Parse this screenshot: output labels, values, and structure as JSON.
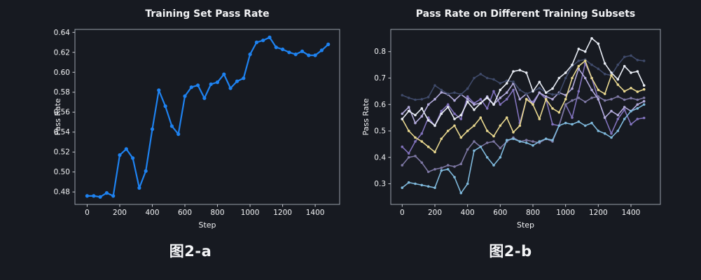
{
  "page": {
    "background": "#171a21"
  },
  "figures": [
    {
      "caption": "图2-a"
    },
    {
      "caption": "图2-b"
    }
  ],
  "chart_data": [
    {
      "type": "line",
      "title": "Training Set Pass Rate",
      "xlabel": "Step",
      "ylabel": "Pass Rate",
      "grid": false,
      "legend": "none",
      "xlim": [
        -75,
        1550
      ],
      "ylim": [
        0.4675,
        0.643
      ],
      "xticks": [
        0,
        200,
        400,
        600,
        800,
        1000,
        1200,
        1400
      ],
      "xtick_labels": [
        "0",
        "200",
        "400",
        "600",
        "800",
        "1000",
        "1200",
        "1400"
      ],
      "yticks": [
        0.48,
        0.5,
        0.52,
        0.54,
        0.56,
        0.58,
        0.6,
        0.62,
        0.64
      ],
      "ytick_labels": [
        "0.48",
        "0.50",
        "0.52",
        "0.54",
        "0.56",
        "0.58",
        "0.60",
        "0.62",
        "0.64"
      ],
      "x": [
        0,
        40,
        80,
        120,
        160,
        200,
        240,
        280,
        320,
        360,
        400,
        440,
        480,
        520,
        560,
        600,
        640,
        680,
        720,
        760,
        800,
        840,
        880,
        920,
        960,
        1000,
        1040,
        1080,
        1120,
        1160,
        1200,
        1240,
        1280,
        1320,
        1360,
        1400,
        1440,
        1480
      ],
      "series": [
        {
          "name": "training-pass-rate",
          "color": "#1e82f0",
          "values": [
            0.476,
            0.476,
            0.475,
            0.479,
            0.476,
            0.517,
            0.523,
            0.514,
            0.484,
            0.501,
            0.543,
            0.582,
            0.566,
            0.546,
            0.538,
            0.576,
            0.585,
            0.587,
            0.574,
            0.588,
            0.59,
            0.598,
            0.584,
            0.591,
            0.594,
            0.618,
            0.63,
            0.632,
            0.635,
            0.625,
            0.623,
            0.62,
            0.618,
            0.621,
            0.617,
            0.617,
            0.622,
            0.628
          ]
        }
      ]
    },
    {
      "type": "line",
      "title": "Pass Rate on Different Training Subsets",
      "xlabel": "Step",
      "ylabel": "Pass Rate",
      "grid": false,
      "legend": "none",
      "xlim": [
        -70,
        1580
      ],
      "ylim": [
        0.222,
        0.884
      ],
      "xticks": [
        0,
        200,
        400,
        600,
        800,
        1000,
        1200,
        1400
      ],
      "xtick_labels": [
        "0",
        "200",
        "400",
        "600",
        "800",
        "1000",
        "1200",
        "1400"
      ],
      "yticks": [
        0.3,
        0.4,
        0.5,
        0.6,
        0.7,
        0.8
      ],
      "ytick_labels": [
        "0.3",
        "0.4",
        "0.5",
        "0.6",
        "0.7",
        "0.8"
      ],
      "x": [
        0,
        40,
        80,
        120,
        160,
        200,
        240,
        280,
        320,
        360,
        400,
        440,
        480,
        520,
        560,
        600,
        640,
        680,
        720,
        760,
        800,
        840,
        880,
        920,
        960,
        1000,
        1040,
        1080,
        1120,
        1160,
        1200,
        1240,
        1280,
        1320,
        1360,
        1400,
        1440,
        1480
      ],
      "series": [
        {
          "name": "subset-purple",
          "color": "#8172bc",
          "values": [
            0.44,
            0.415,
            0.46,
            0.49,
            0.55,
            0.52,
            0.575,
            0.6,
            0.565,
            0.545,
            0.63,
            0.605,
            0.62,
            0.585,
            0.65,
            0.6,
            0.62,
            0.655,
            0.53,
            0.62,
            0.61,
            0.645,
            0.62,
            0.525,
            0.52,
            0.6,
            0.55,
            0.65,
            0.755,
            0.7,
            0.62,
            0.55,
            0.49,
            0.545,
            0.58,
            0.525,
            0.545,
            0.549
          ]
        },
        {
          "name": "subset-gray-purple",
          "color": "#7d77a3",
          "values": [
            0.37,
            0.4,
            0.405,
            0.38,
            0.345,
            0.355,
            0.36,
            0.37,
            0.365,
            0.375,
            0.43,
            0.46,
            0.44,
            0.455,
            0.46,
            0.435,
            0.46,
            0.475,
            0.46,
            0.465,
            0.46,
            0.455,
            0.47,
            0.46,
            0.52,
            0.6,
            0.615,
            0.625,
            0.61,
            0.625,
            0.63,
            0.615,
            0.62,
            0.63,
            0.618,
            0.624,
            0.618,
            0.625
          ]
        },
        {
          "name": "subset-lavender",
          "color": "#b3abdc",
          "values": [
            0.565,
            0.59,
            0.53,
            0.555,
            0.6,
            0.62,
            0.646,
            0.638,
            0.615,
            0.638,
            0.62,
            0.6,
            0.605,
            0.63,
            0.6,
            0.625,
            0.645,
            0.68,
            0.62,
            0.64,
            0.6,
            0.645,
            0.63,
            0.62,
            0.645,
            0.635,
            0.66,
            0.735,
            0.7,
            0.655,
            0.62,
            0.55,
            0.575,
            0.56,
            0.59,
            0.575,
            0.6,
            0.612
          ]
        },
        {
          "name": "subset-slate",
          "color": "#3f4a6a",
          "values": [
            0.635,
            0.625,
            0.618,
            0.62,
            0.628,
            0.672,
            0.655,
            0.64,
            0.645,
            0.638,
            0.66,
            0.7,
            0.715,
            0.7,
            0.695,
            0.68,
            0.69,
            0.686,
            0.655,
            0.64,
            0.65,
            0.662,
            0.645,
            0.638,
            0.64,
            0.7,
            0.745,
            0.765,
            0.77,
            0.75,
            0.735,
            0.715,
            0.71,
            0.75,
            0.78,
            0.785,
            0.768,
            0.765
          ]
        },
        {
          "name": "subset-khaki",
          "color": "#e9d88f",
          "values": [
            0.545,
            0.5,
            0.475,
            0.46,
            0.44,
            0.42,
            0.47,
            0.5,
            0.52,
            0.475,
            0.5,
            0.52,
            0.55,
            0.5,
            0.48,
            0.52,
            0.55,
            0.495,
            0.52,
            0.62,
            0.6,
            0.545,
            0.62,
            0.585,
            0.57,
            0.62,
            0.7,
            0.745,
            0.765,
            0.7,
            0.655,
            0.64,
            0.71,
            0.675,
            0.65,
            0.662,
            0.648,
            0.657
          ]
        },
        {
          "name": "subset-skyblue",
          "color": "#7fb9dc",
          "values": [
            0.285,
            0.305,
            0.3,
            0.295,
            0.29,
            0.285,
            0.35,
            0.355,
            0.325,
            0.265,
            0.3,
            0.425,
            0.44,
            0.4,
            0.37,
            0.4,
            0.465,
            0.47,
            0.46,
            0.455,
            0.445,
            0.46,
            0.47,
            0.465,
            0.52,
            0.53,
            0.525,
            0.535,
            0.52,
            0.53,
            0.5,
            0.49,
            0.475,
            0.5,
            0.545,
            0.575,
            0.585,
            0.6
          ]
        },
        {
          "name": "subset-white",
          "color": "#e9edf5",
          "values": [
            0.545,
            0.575,
            0.56,
            0.585,
            0.54,
            0.52,
            0.565,
            0.59,
            0.545,
            0.56,
            0.61,
            0.58,
            0.605,
            0.625,
            0.6,
            0.655,
            0.68,
            0.725,
            0.73,
            0.72,
            0.65,
            0.685,
            0.645,
            0.66,
            0.7,
            0.72,
            0.75,
            0.81,
            0.8,
            0.85,
            0.83,
            0.755,
            0.72,
            0.695,
            0.745,
            0.72,
            0.725,
            0.672
          ]
        }
      ]
    }
  ]
}
